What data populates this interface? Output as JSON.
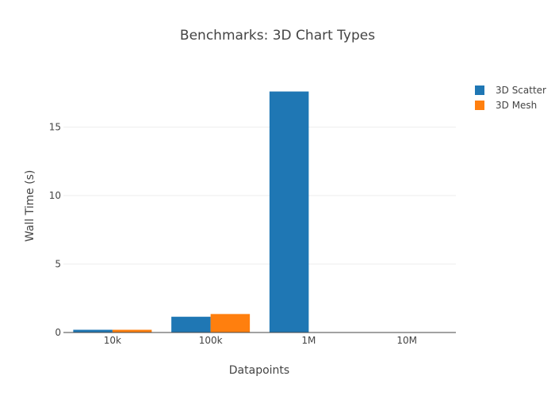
{
  "chart_data": {
    "type": "bar",
    "title": "Benchmarks: 3D Chart Types",
    "xlabel": "Datapoints",
    "ylabel": "Wall Time (s)",
    "categories": [
      "10k",
      "100k",
      "1M",
      "10M"
    ],
    "series": [
      {
        "name": "3D Scatter",
        "color": "#1f77b4",
        "values": [
          0.2,
          1.15,
          17.6,
          0
        ]
      },
      {
        "name": "3D Mesh",
        "color": "#ff7f0e",
        "values": [
          0.2,
          1.35,
          0,
          0
        ]
      }
    ],
    "ylim": [
      0,
      18.5
    ],
    "yticks": [
      0,
      5,
      10,
      15
    ],
    "grid": true,
    "legend_position": "top-right",
    "barmode": "grouped"
  }
}
